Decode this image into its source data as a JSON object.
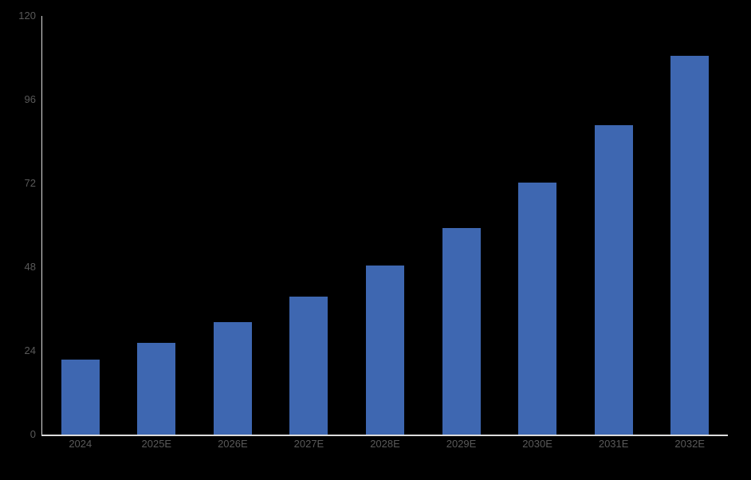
{
  "page": {
    "background_color": "#000000"
  },
  "chart_data": {
    "type": "bar",
    "title": "",
    "xlabel": "",
    "ylabel": "",
    "categories": [
      "2024",
      "2025E",
      "2026E",
      "2027E",
      "2028E",
      "2029E",
      "2030E",
      "2031E",
      "2032E"
    ],
    "values": [
      21.4,
      26.3,
      32.2,
      39.5,
      48.4,
      59.2,
      72.3,
      88.6,
      108.6
    ],
    "ylim": [
      0,
      120
    ],
    "y_ticks": [
      0,
      24,
      48,
      72,
      96,
      120
    ],
    "grid": false,
    "legend": false,
    "bar_color": "#3E67B1",
    "axis_line_color": "#DCDCDC",
    "tick_label_color": "#595959"
  }
}
